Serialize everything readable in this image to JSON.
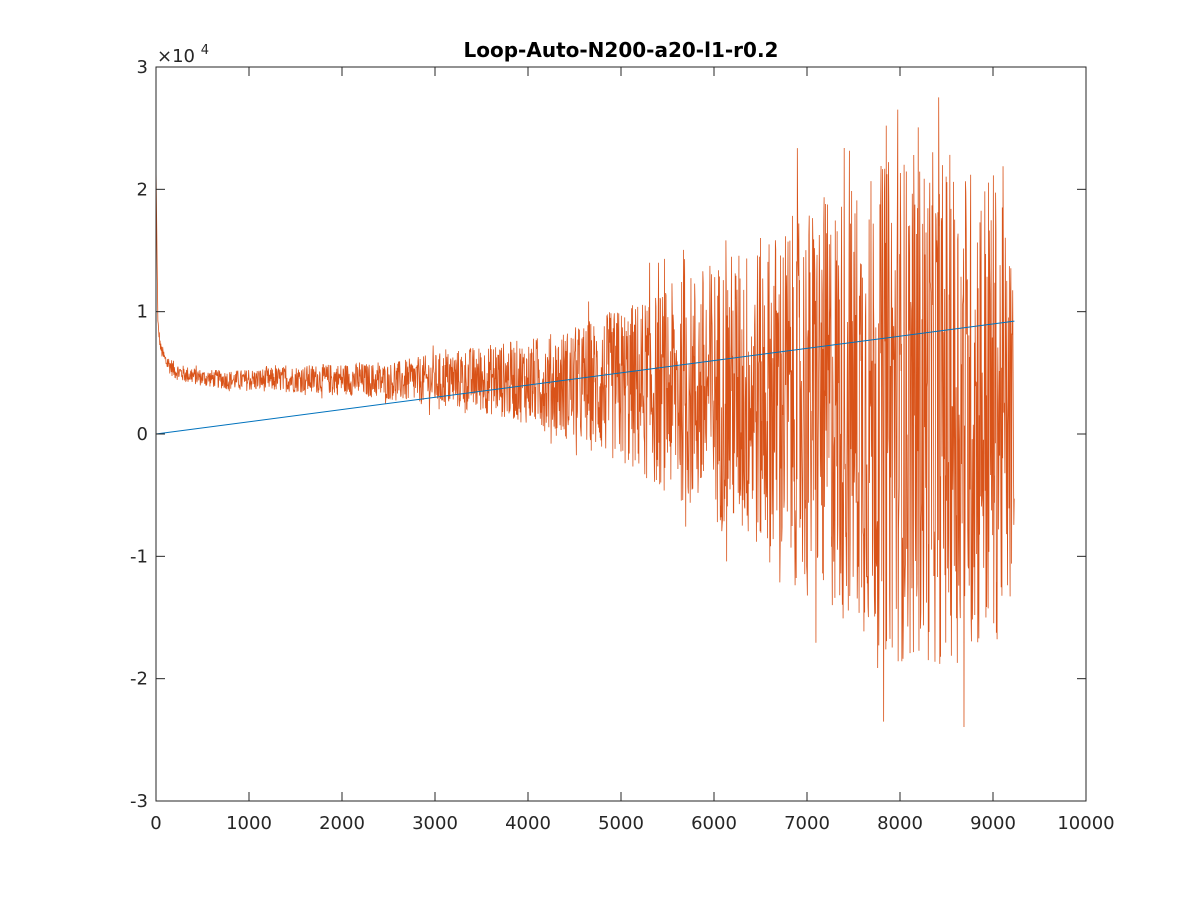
{
  "chart_data": {
    "type": "line",
    "title": "Loop-Auto-N200-a20-l1-r0.2",
    "xlabel": "",
    "ylabel": "",
    "xlim": [
      0,
      10000
    ],
    "ylim": [
      -30000,
      30000
    ],
    "x_ticks": [
      0,
      1000,
      2000,
      3000,
      4000,
      5000,
      6000,
      7000,
      8000,
      9000,
      10000
    ],
    "x_tick_labels": [
      "0",
      "1000",
      "2000",
      "3000",
      "4000",
      "5000",
      "6000",
      "7000",
      "8000",
      "9000",
      "10000"
    ],
    "y_ticks": [
      -30000,
      -20000,
      -10000,
      0,
      10000,
      20000,
      30000
    ],
    "y_tick_labels": [
      "-3",
      "-2",
      "-1",
      "0",
      "1",
      "2",
      "3"
    ],
    "y_exponent_label": {
      "base": "×10",
      "power": "4"
    },
    "grid": false,
    "legend": "none",
    "series": [
      {
        "color": "#0072BD",
        "x": [
          0,
          9230
        ],
        "y": [
          0,
          9230
        ],
        "note_shape": "linear"
      },
      {
        "color": "#D95319",
        "x": [
          0,
          20,
          50,
          100,
          200,
          300,
          500,
          800,
          1000,
          1500,
          2000,
          2500,
          3000,
          3500,
          4000,
          4500,
          5000,
          5500,
          6000,
          6500,
          7000,
          7500,
          8000,
          8500,
          9000,
          9230
        ],
        "center": [
          22000,
          9000,
          7000,
          6000,
          5200,
          4900,
          4600,
          4400,
          4400,
          4500,
          4500,
          4300,
          4400,
          4500,
          4300,
          4000,
          3900,
          3600,
          3400,
          3100,
          2700,
          2300,
          2200,
          2000,
          2100,
          0
        ],
        "amplitude": [
          0,
          500,
          500,
          700,
          700,
          700,
          700,
          800,
          900,
          1100,
          1300,
          1500,
          2200,
          2800,
          3500,
          4800,
          6500,
          8500,
          11000,
          13000,
          16000,
          18500,
          21000,
          21000,
          20000,
          14000
        ]
      }
    ]
  }
}
